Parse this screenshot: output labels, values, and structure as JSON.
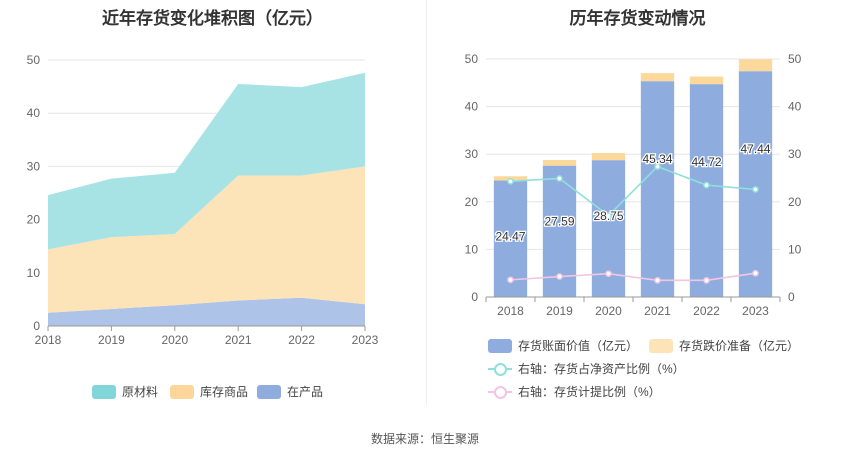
{
  "source": "数据来源：恒生聚源",
  "colors": {
    "raw": "#a7e3e5",
    "finished": "#fde3b8",
    "wip": "#aec3e8",
    "legend_raw": "#82d6d9",
    "legend_finished": "#fcd69a",
    "legend_wip": "#8eadde",
    "bar_book": "#8eadde",
    "bar_reserve": "#fcd99a",
    "line_ratio": "#8ee0dc",
    "line_provision": "#f2c6e3"
  },
  "chart_data": [
    {
      "type": "area",
      "title": "近年存货变化堆积图（亿元）",
      "categories": [
        "2018",
        "2019",
        "2020",
        "2021",
        "2022",
        "2023"
      ],
      "ylim": [
        0,
        50
      ],
      "yticks": [
        "0",
        "10",
        "20",
        "30",
        "40",
        "50"
      ],
      "stacked": true,
      "series": [
        {
          "name": "在产品",
          "values": [
            2.5,
            3.2,
            3.9,
            4.8,
            5.3,
            4.1
          ]
        },
        {
          "name": "库存商品",
          "values": [
            11.9,
            13.5,
            13.4,
            23.5,
            23.0,
            25.9
          ]
        },
        {
          "name": "原材料",
          "values": [
            10.2,
            11.0,
            11.5,
            17.2,
            16.6,
            17.6
          ]
        }
      ],
      "legend": {
        "position": "bottom",
        "items": [
          "原材料",
          "库存商品",
          "在产品"
        ]
      },
      "grid": true
    },
    {
      "type": "bar",
      "title": "历年存货变动情况",
      "categories": [
        "2018",
        "2019",
        "2020",
        "2021",
        "2022",
        "2023"
      ],
      "ylim": [
        0,
        50
      ],
      "y2lim": [
        0,
        50
      ],
      "yticks": [
        "0",
        "10",
        "20",
        "30",
        "40",
        "50"
      ],
      "y2ticks": [
        "0",
        "10",
        "20",
        "30",
        "40",
        "50"
      ],
      "stacked": true,
      "series": [
        {
          "name": "存货账面价值（亿元）",
          "values": [
            24.47,
            27.59,
            28.75,
            45.34,
            44.72,
            47.44
          ],
          "labels": [
            "24.47",
            "27.59",
            "28.75",
            "45.34",
            "44.72",
            "47.44"
          ]
        },
        {
          "name": "存货跌价准备（亿元）",
          "values": [
            0.9,
            1.2,
            1.5,
            1.7,
            1.6,
            2.5
          ]
        }
      ],
      "lines": [
        {
          "name": "右轴：存货占净资产比例（%）",
          "axis": "right",
          "values": [
            24.3,
            24.9,
            17.1,
            27.4,
            23.5,
            22.6
          ]
        },
        {
          "name": "右轴：存货计提比例（%）",
          "axis": "right",
          "values": [
            3.6,
            4.3,
            4.9,
            3.5,
            3.5,
            5.0
          ]
        }
      ],
      "legend": {
        "position": "bottom"
      },
      "grid": true
    }
  ]
}
